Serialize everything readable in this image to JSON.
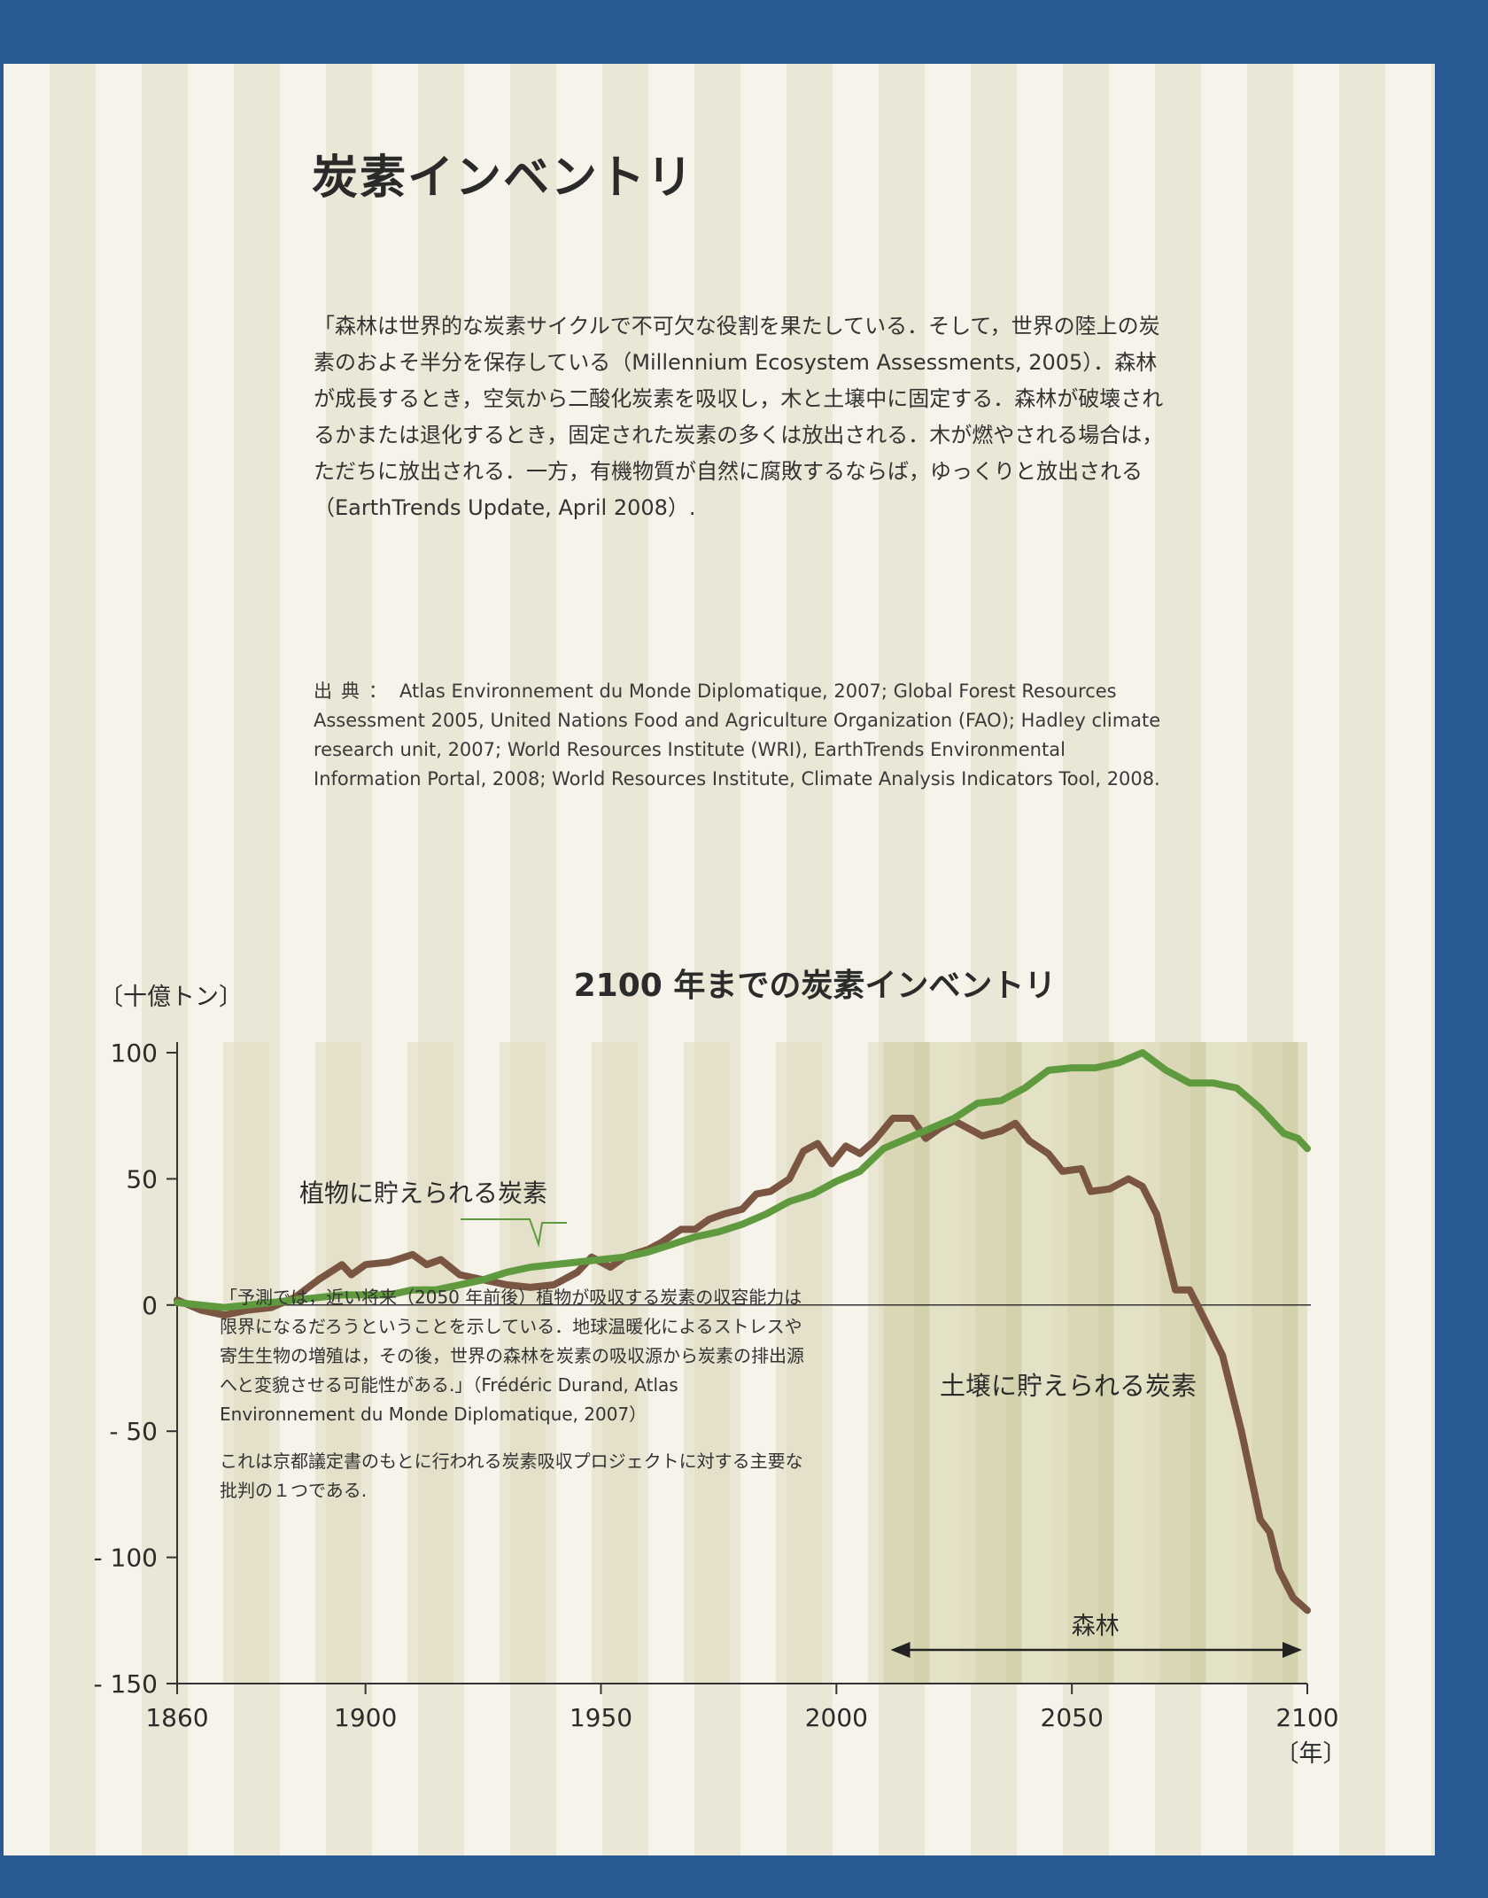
{
  "page": {
    "title": "炭素インベントリ",
    "intro": "「森林は世界的な炭素サイクルで不可欠な役割を果たしている．そして，世界の陸上の炭素のおよそ半分を保存している（Millennium Ecosystem Assessments, 2005）．森林が成長するとき，空気から二酸化炭素を吸収し，木と土壌中に固定する．森林が破壊されるかまたは退化するとき，固定された炭素の多くは放出される．木が燃やされる場合は，ただちに放出される．一方，有機物質が自然に腐敗するならば，ゆっくりと放出される（EarthTrends Update, April 2008）.",
    "source_label": "出典：",
    "source_text": "Atlas Environnement du Monde Diplomatique, 2007; Global Forest Resources Assessment 2005, United Nations Food and Agriculture Organization (FAO); Hadley climate research unit, 2007; World Resources Institute (WRI), EarthTrends Environmental Information Portal, 2008; World Resources Institute, Climate Analysis Indicators Tool, 2008.",
    "note_quote": "「予測では，近い将来（2050 年前後）植物が吸収する炭素の収容能力は限界になるだろうということを示している．地球温暖化によるストレスや寄生生物の増殖は，その後，世界の森林を炭素の吸収源から炭素の排出源へと変貌させる可能性がある.」（Frédéric Durand, Atlas Environnement du Monde Diplomatique, 2007）",
    "note_comment": "これは京都議定書のもとに行われる炭素吸収プロジェクトに対する主要な批判の１つである."
  },
  "chart_data": {
    "type": "line",
    "title": "2100 年までの炭素インベントリ",
    "ylabel": "〔十億トン〕",
    "xlabel": "〔年〕",
    "xlim": [
      1860,
      2100
    ],
    "ylim": [
      -150,
      100
    ],
    "x_ticks": [
      1860,
      1900,
      1950,
      2000,
      2050,
      2100
    ],
    "y_ticks": [
      100,
      50,
      0,
      -50,
      -100,
      -150
    ],
    "y_tick_labels": [
      "100",
      "50",
      "0",
      "- 50",
      "- 100",
      "- 150"
    ],
    "grid": false,
    "zero_line": true,
    "highlight_region": {
      "from": 2010,
      "to": 2100,
      "label": "森林"
    },
    "series": [
      {
        "name": "植物に貯えられる炭素",
        "color": "#5f9a3e",
        "points": [
          [
            1860,
            1
          ],
          [
            1865,
            0
          ],
          [
            1870,
            -1
          ],
          [
            1875,
            0
          ],
          [
            1880,
            1
          ],
          [
            1885,
            2
          ],
          [
            1890,
            3
          ],
          [
            1895,
            4
          ],
          [
            1900,
            4
          ],
          [
            1905,
            4
          ],
          [
            1910,
            6
          ],
          [
            1915,
            6
          ],
          [
            1920,
            8
          ],
          [
            1925,
            10
          ],
          [
            1930,
            13
          ],
          [
            1935,
            15
          ],
          [
            1940,
            16
          ],
          [
            1945,
            17
          ],
          [
            1950,
            18
          ],
          [
            1955,
            19
          ],
          [
            1960,
            21
          ],
          [
            1965,
            24
          ],
          [
            1970,
            27
          ],
          [
            1975,
            29
          ],
          [
            1980,
            32
          ],
          [
            1985,
            36
          ],
          [
            1990,
            41
          ],
          [
            1995,
            44
          ],
          [
            2000,
            49
          ],
          [
            2005,
            53
          ],
          [
            2010,
            62
          ],
          [
            2015,
            66
          ],
          [
            2020,
            70
          ],
          [
            2025,
            74
          ],
          [
            2030,
            80
          ],
          [
            2035,
            81
          ],
          [
            2040,
            86
          ],
          [
            2045,
            93
          ],
          [
            2050,
            94
          ],
          [
            2055,
            94
          ],
          [
            2060,
            96
          ],
          [
            2065,
            100
          ],
          [
            2070,
            93
          ],
          [
            2075,
            88
          ],
          [
            2080,
            88
          ],
          [
            2085,
            86
          ],
          [
            2090,
            78
          ],
          [
            2095,
            68
          ],
          [
            2098,
            66
          ],
          [
            2100,
            62
          ]
        ]
      },
      {
        "name": "土壌に貯えられる炭素",
        "color": "#7a5642",
        "points": [
          [
            1860,
            2
          ],
          [
            1865,
            -2
          ],
          [
            1870,
            -4
          ],
          [
            1875,
            -2
          ],
          [
            1880,
            -1
          ],
          [
            1885,
            3
          ],
          [
            1890,
            10
          ],
          [
            1895,
            16
          ],
          [
            1897,
            12
          ],
          [
            1900,
            16
          ],
          [
            1905,
            17
          ],
          [
            1910,
            20
          ],
          [
            1913,
            16
          ],
          [
            1916,
            18
          ],
          [
            1920,
            12
          ],
          [
            1925,
            10
          ],
          [
            1930,
            8
          ],
          [
            1935,
            7
          ],
          [
            1940,
            8
          ],
          [
            1945,
            13
          ],
          [
            1948,
            19
          ],
          [
            1952,
            15
          ],
          [
            1955,
            19
          ],
          [
            1960,
            22
          ],
          [
            1963,
            25
          ],
          [
            1967,
            30
          ],
          [
            1970,
            30
          ],
          [
            1973,
            34
          ],
          [
            1976,
            36
          ],
          [
            1980,
            38
          ],
          [
            1983,
            44
          ],
          [
            1986,
            45
          ],
          [
            1990,
            50
          ],
          [
            1993,
            61
          ],
          [
            1996,
            64
          ],
          [
            1999,
            56
          ],
          [
            2002,
            63
          ],
          [
            2005,
            60
          ],
          [
            2008,
            65
          ],
          [
            2012,
            74
          ],
          [
            2016,
            74
          ],
          [
            2019,
            66
          ],
          [
            2022,
            70
          ],
          [
            2025,
            73
          ],
          [
            2028,
            70
          ],
          [
            2031,
            67
          ],
          [
            2035,
            69
          ],
          [
            2038,
            72
          ],
          [
            2041,
            65
          ],
          [
            2045,
            60
          ],
          [
            2048,
            53
          ],
          [
            2052,
            54
          ],
          [
            2054,
            45
          ],
          [
            2058,
            46
          ],
          [
            2062,
            50
          ],
          [
            2065,
            47
          ],
          [
            2068,
            36
          ],
          [
            2072,
            6
          ],
          [
            2075,
            6
          ],
          [
            2078,
            -5
          ],
          [
            2082,
            -20
          ],
          [
            2086,
            -50
          ],
          [
            2090,
            -85
          ],
          [
            2092,
            -90
          ],
          [
            2094,
            -105
          ],
          [
            2097,
            -116
          ],
          [
            2100,
            -121
          ]
        ]
      }
    ]
  }
}
